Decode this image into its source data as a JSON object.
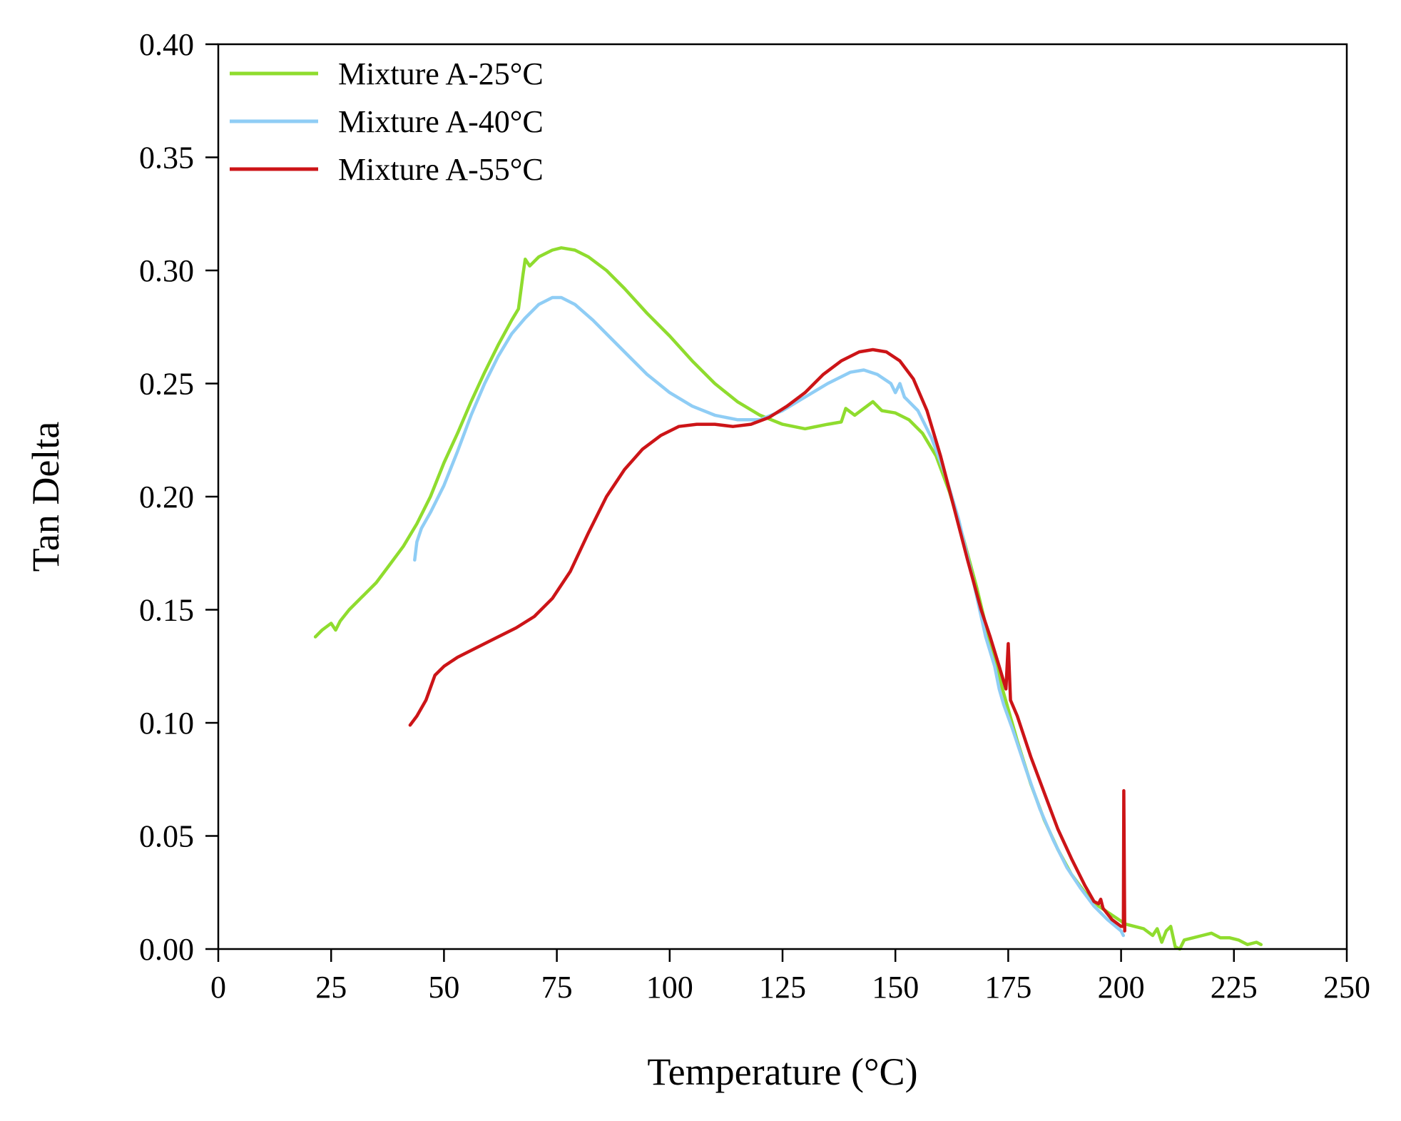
{
  "chart_data": {
    "type": "line",
    "title": "",
    "xlabel": "Temperature (°C)",
    "ylabel": "Tan Delta",
    "xlim": [
      0,
      250
    ],
    "ylim": [
      0,
      0.4
    ],
    "x_ticks": [
      0,
      25,
      50,
      75,
      100,
      125,
      150,
      175,
      200,
      225,
      250
    ],
    "x_tick_labels": [
      "0",
      "25",
      "50",
      "75",
      "100",
      "125",
      "150",
      "175",
      "200",
      "225",
      "250"
    ],
    "y_ticks": [
      0,
      0.05,
      0.1,
      0.15,
      0.2,
      0.25,
      0.3,
      0.35,
      0.4
    ],
    "y_tick_labels": [
      "0.00",
      "0.05",
      "0.10",
      "0.15",
      "0.20",
      "0.25",
      "0.30",
      "0.35",
      "0.40"
    ],
    "grid": false,
    "legend_position": "top-left",
    "series": [
      {
        "name": "Mixture A-25°C",
        "color": "#8fdc2e",
        "points": [
          [
            21.5,
            0.138
          ],
          [
            23,
            0.141
          ],
          [
            25,
            0.144
          ],
          [
            26,
            0.141
          ],
          [
            27,
            0.145
          ],
          [
            29,
            0.15
          ],
          [
            32,
            0.156
          ],
          [
            35,
            0.162
          ],
          [
            38,
            0.17
          ],
          [
            41,
            0.178
          ],
          [
            44,
            0.188
          ],
          [
            47,
            0.2
          ],
          [
            50,
            0.215
          ],
          [
            53,
            0.228
          ],
          [
            56,
            0.242
          ],
          [
            59,
            0.255
          ],
          [
            62,
            0.267
          ],
          [
            65,
            0.278
          ],
          [
            66.5,
            0.283
          ],
          [
            67.5,
            0.298
          ],
          [
            68,
            0.305
          ],
          [
            69,
            0.302
          ],
          [
            71,
            0.306
          ],
          [
            74,
            0.309
          ],
          [
            76,
            0.31
          ],
          [
            79,
            0.309
          ],
          [
            82,
            0.306
          ],
          [
            86,
            0.3
          ],
          [
            90,
            0.292
          ],
          [
            95,
            0.281
          ],
          [
            100,
            0.271
          ],
          [
            105,
            0.26
          ],
          [
            110,
            0.25
          ],
          [
            115,
            0.242
          ],
          [
            120,
            0.236
          ],
          [
            125,
            0.232
          ],
          [
            130,
            0.23
          ],
          [
            135,
            0.232
          ],
          [
            138,
            0.233
          ],
          [
            139,
            0.239
          ],
          [
            141,
            0.236
          ],
          [
            143,
            0.239
          ],
          [
            145,
            0.242
          ],
          [
            147,
            0.238
          ],
          [
            150,
            0.237
          ],
          [
            153,
            0.234
          ],
          [
            156,
            0.228
          ],
          [
            159,
            0.218
          ],
          [
            162,
            0.202
          ],
          [
            165,
            0.182
          ],
          [
            168,
            0.16
          ],
          [
            171,
            0.135
          ],
          [
            174,
            0.113
          ],
          [
            177,
            0.092
          ],
          [
            180,
            0.073
          ],
          [
            183,
            0.057
          ],
          [
            186,
            0.044
          ],
          [
            189,
            0.033
          ],
          [
            192,
            0.025
          ],
          [
            195,
            0.019
          ],
          [
            198,
            0.015
          ],
          [
            201,
            0.011
          ],
          [
            203,
            0.01
          ],
          [
            205,
            0.009
          ],
          [
            207,
            0.006
          ],
          [
            208,
            0.009
          ],
          [
            209,
            0.003
          ],
          [
            210,
            0.008
          ],
          [
            211,
            0.01
          ],
          [
            212,
            0.001
          ],
          [
            213,
            0.0
          ],
          [
            214,
            0.004
          ],
          [
            216,
            0.005
          ],
          [
            218,
            0.006
          ],
          [
            220,
            0.007
          ],
          [
            222,
            0.005
          ],
          [
            224,
            0.005
          ],
          [
            226,
            0.004
          ],
          [
            228,
            0.002
          ],
          [
            230,
            0.003
          ],
          [
            231,
            0.002
          ]
        ]
      },
      {
        "name": "Mixture A-40°C",
        "color": "#8fcdf5",
        "points": [
          [
            43.5,
            0.172
          ],
          [
            44,
            0.18
          ],
          [
            45,
            0.186
          ],
          [
            47,
            0.193
          ],
          [
            50,
            0.205
          ],
          [
            53,
            0.22
          ],
          [
            56,
            0.236
          ],
          [
            59,
            0.25
          ],
          [
            62,
            0.262
          ],
          [
            65,
            0.272
          ],
          [
            68,
            0.279
          ],
          [
            71,
            0.285
          ],
          [
            74,
            0.288
          ],
          [
            76,
            0.288
          ],
          [
            79,
            0.285
          ],
          [
            83,
            0.278
          ],
          [
            87,
            0.27
          ],
          [
            91,
            0.262
          ],
          [
            95,
            0.254
          ],
          [
            100,
            0.246
          ],
          [
            105,
            0.24
          ],
          [
            110,
            0.236
          ],
          [
            115,
            0.234
          ],
          [
            120,
            0.234
          ],
          [
            125,
            0.238
          ],
          [
            130,
            0.244
          ],
          [
            135,
            0.25
          ],
          [
            140,
            0.255
          ],
          [
            143,
            0.256
          ],
          [
            146,
            0.254
          ],
          [
            149,
            0.25
          ],
          [
            150,
            0.246
          ],
          [
            151,
            0.25
          ],
          [
            152,
            0.244
          ],
          [
            155,
            0.238
          ],
          [
            158,
            0.226
          ],
          [
            161,
            0.21
          ],
          [
            164,
            0.19
          ],
          [
            167,
            0.165
          ],
          [
            170,
            0.138
          ],
          [
            172,
            0.125
          ],
          [
            173,
            0.115
          ],
          [
            174,
            0.108
          ],
          [
            176,
            0.097
          ],
          [
            179,
            0.079
          ],
          [
            182,
            0.062
          ],
          [
            185,
            0.048
          ],
          [
            188,
            0.036
          ],
          [
            191,
            0.027
          ],
          [
            194,
            0.019
          ],
          [
            197,
            0.013
          ],
          [
            200,
            0.008
          ],
          [
            200.5,
            0.006
          ]
        ]
      },
      {
        "name": "Mixture A-55°C",
        "color": "#cc1417",
        "points": [
          [
            42.5,
            0.099
          ],
          [
            44,
            0.103
          ],
          [
            46,
            0.11
          ],
          [
            48,
            0.121
          ],
          [
            50,
            0.125
          ],
          [
            53,
            0.129
          ],
          [
            57,
            0.133
          ],
          [
            62,
            0.138
          ],
          [
            66,
            0.142
          ],
          [
            70,
            0.147
          ],
          [
            74,
            0.155
          ],
          [
            78,
            0.167
          ],
          [
            82,
            0.184
          ],
          [
            86,
            0.2
          ],
          [
            90,
            0.212
          ],
          [
            94,
            0.221
          ],
          [
            98,
            0.227
          ],
          [
            102,
            0.231
          ],
          [
            106,
            0.232
          ],
          [
            110,
            0.232
          ],
          [
            114,
            0.231
          ],
          [
            118,
            0.232
          ],
          [
            122,
            0.235
          ],
          [
            126,
            0.24
          ],
          [
            130,
            0.246
          ],
          [
            134,
            0.254
          ],
          [
            138,
            0.26
          ],
          [
            142,
            0.264
          ],
          [
            145,
            0.265
          ],
          [
            148,
            0.264
          ],
          [
            151,
            0.26
          ],
          [
            154,
            0.252
          ],
          [
            157,
            0.238
          ],
          [
            160,
            0.218
          ],
          [
            163,
            0.195
          ],
          [
            166,
            0.172
          ],
          [
            169,
            0.15
          ],
          [
            171,
            0.138
          ],
          [
            173,
            0.125
          ],
          [
            174.5,
            0.115
          ],
          [
            175,
            0.135
          ],
          [
            175.5,
            0.11
          ],
          [
            177,
            0.103
          ],
          [
            180,
            0.085
          ],
          [
            183,
            0.069
          ],
          [
            186,
            0.053
          ],
          [
            189,
            0.04
          ],
          [
            192,
            0.028
          ],
          [
            194,
            0.021
          ],
          [
            195,
            0.02
          ],
          [
            195.5,
            0.022
          ],
          [
            196,
            0.018
          ],
          [
            198,
            0.013
          ],
          [
            200,
            0.01
          ],
          [
            200.5,
            0.01
          ],
          [
            200.6,
            0.07
          ],
          [
            200.8,
            0.008
          ]
        ]
      }
    ]
  }
}
